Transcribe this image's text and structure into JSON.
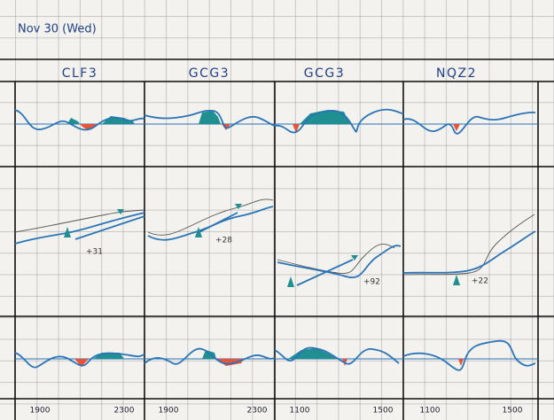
{
  "header": {
    "date": "Nov 30 (Wed)"
  },
  "columns": [
    {
      "title": "CLF3",
      "note": "+31",
      "times": [
        "1900",
        "2300"
      ]
    },
    {
      "title": "GCG3",
      "note": "+28",
      "times": [
        "1900",
        "2300"
      ]
    },
    {
      "title": "GCG3",
      "note": "+92",
      "times": [
        "1100",
        "1500"
      ]
    },
    {
      "title": "NQZ2",
      "note": "+22",
      "times": [
        "1100",
        "1500"
      ]
    }
  ]
}
